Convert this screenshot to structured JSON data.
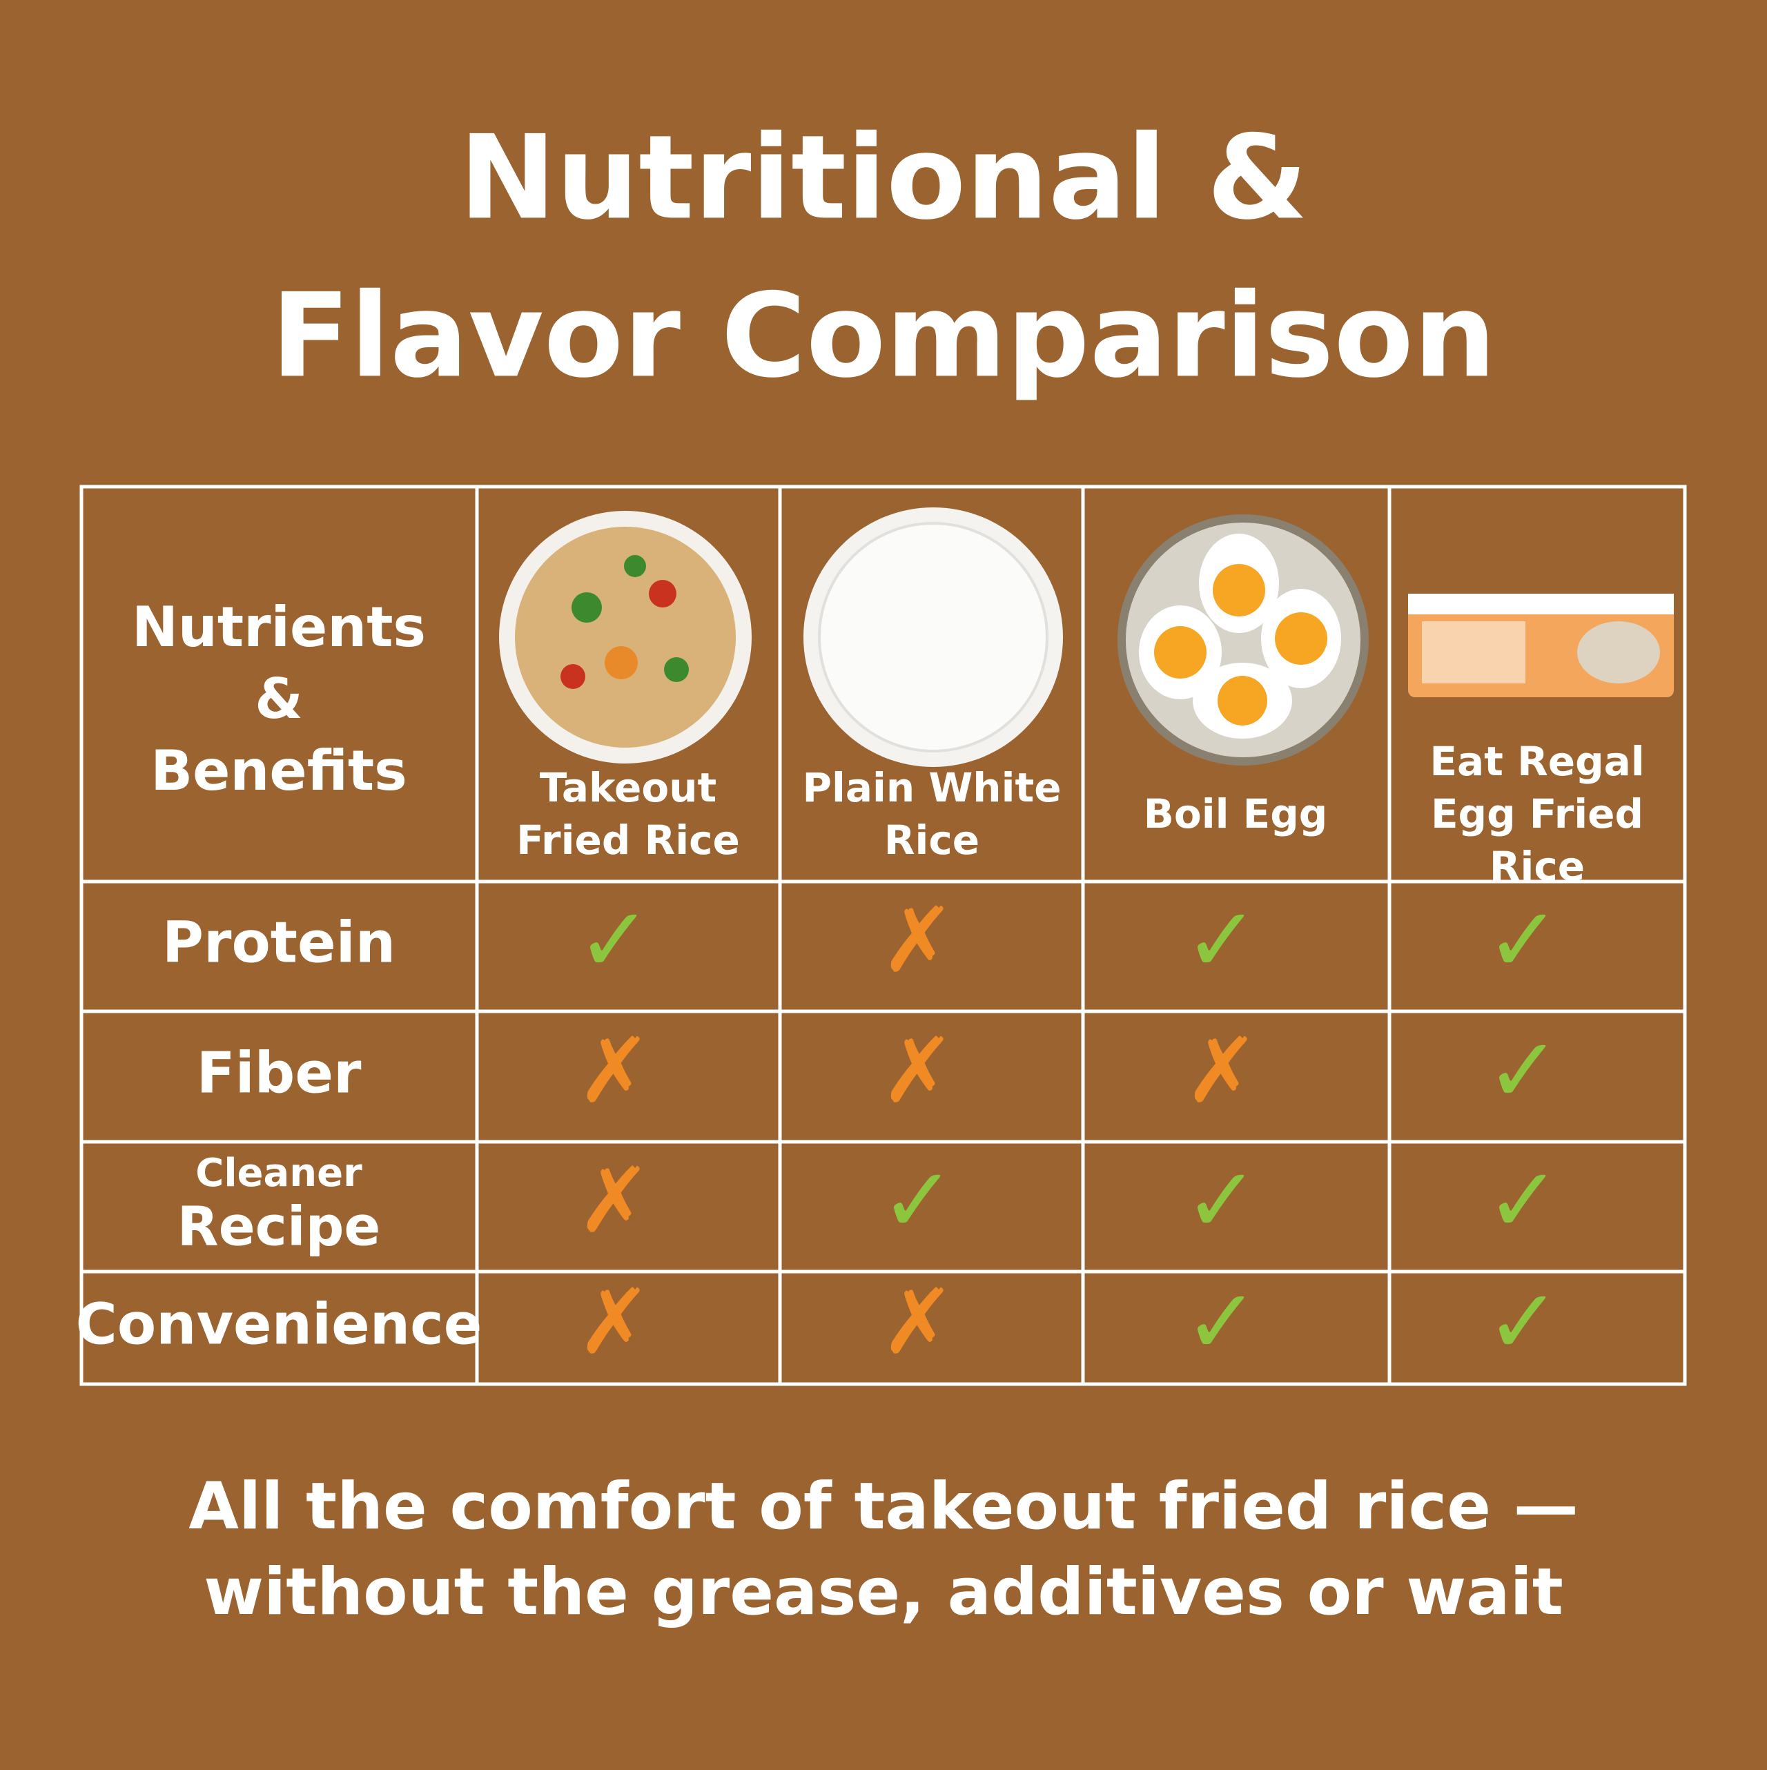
{
  "header": {
    "title": [
      "Nutritional &",
      "Flavor Comparison"
    ]
  },
  "table": {
    "corner": [
      "Nutrients",
      "&",
      "Benefits"
    ],
    "columns": [
      [
        "Takeout",
        "Fried Rice"
      ],
      [
        "Plain White",
        "Rice"
      ],
      [
        "Boil Egg"
      ],
      [
        "Eat Regal",
        "Egg Fried",
        "Rice"
      ]
    ],
    "rows": [
      {
        "label": [
          "Protein"
        ],
        "cells": [
          "✓",
          "✗",
          "✓",
          "✓"
        ]
      },
      {
        "label": [
          "Fiber"
        ],
        "cells": [
          "✗",
          "✗",
          "✗",
          "✓"
        ]
      },
      {
        "label": [
          "Cleaner",
          "Recipe"
        ],
        "cells": [
          "✗",
          "✓",
          "✓",
          "✓"
        ]
      },
      {
        "label": [
          "Convenience"
        ],
        "cells": [
          "✗",
          "✗",
          "✓",
          "✓"
        ]
      }
    ]
  },
  "footer": [
    "All the comfort of takeout fried rice —",
    "without the grease, additives or wait"
  ]
}
